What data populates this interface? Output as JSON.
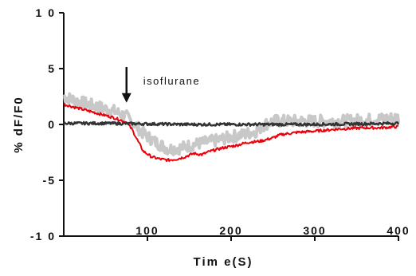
{
  "chart_data": {
    "type": "line",
    "title": "",
    "xlabel": "Tim e(S)",
    "ylabel": "% dF/F0",
    "xlim": [
      0,
      400
    ],
    "ylim": [
      -10,
      10
    ],
    "x_ticks": [
      100,
      200,
      300,
      400
    ],
    "y_ticks": [
      10,
      5,
      0,
      -5,
      -10
    ],
    "x_tick_labels": [
      "100",
      "200",
      "300",
      "400"
    ],
    "y_tick_labels": [
      "1 0",
      "5",
      "0",
      "-5",
      "-1 0"
    ],
    "grid": false,
    "legend": "none",
    "series": [
      {
        "color": "#c8c8c8",
        "style": "noisy band",
        "x": [
          0,
          20,
          40,
          60,
          75,
          85,
          95,
          110,
          125,
          140,
          155,
          170,
          185,
          200,
          215,
          230,
          240,
          250,
          270,
          300,
          330,
          360,
          380,
          400
        ],
        "y": [
          2.5,
          2.0,
          1.6,
          1.2,
          0.7,
          0.0,
          -0.8,
          -1.6,
          -2.2,
          -2.1,
          -1.8,
          -1.6,
          -1.4,
          -1.1,
          -0.9,
          -0.6,
          0.0,
          0.3,
          0.3,
          0.3,
          0.3,
          0.4,
          0.5,
          0.6
        ]
      },
      {
        "color": "#e8000b",
        "style": "line",
        "x": [
          0,
          20,
          40,
          60,
          75,
          82,
          88,
          95,
          105,
          115,
          125,
          135,
          145,
          155,
          165,
          175,
          190,
          205,
          220,
          235,
          250,
          260,
          280,
          300,
          330,
          360,
          380,
          400
        ],
        "y": [
          1.8,
          1.4,
          1.0,
          0.6,
          0.2,
          -0.5,
          -1.4,
          -2.4,
          -2.9,
          -3.1,
          -3.2,
          -3.1,
          -2.9,
          -2.6,
          -2.7,
          -2.4,
          -2.1,
          -1.9,
          -1.6,
          -1.5,
          -1.2,
          -0.9,
          -0.7,
          -0.6,
          -0.4,
          -0.3,
          -0.3,
          -0.2
        ]
      },
      {
        "color": "#333333",
        "style": "line",
        "x": [
          0,
          50,
          100,
          150,
          200,
          250,
          300,
          350,
          400
        ],
        "y": [
          0.1,
          0.1,
          0.05,
          0.0,
          0.0,
          0.0,
          0.0,
          0.05,
          0.1
        ]
      }
    ],
    "annotations": [
      {
        "text": "isoflurane",
        "arrow_x": 75,
        "arrow_from_y": 5,
        "arrow_to_y": 1.8
      }
    ]
  }
}
